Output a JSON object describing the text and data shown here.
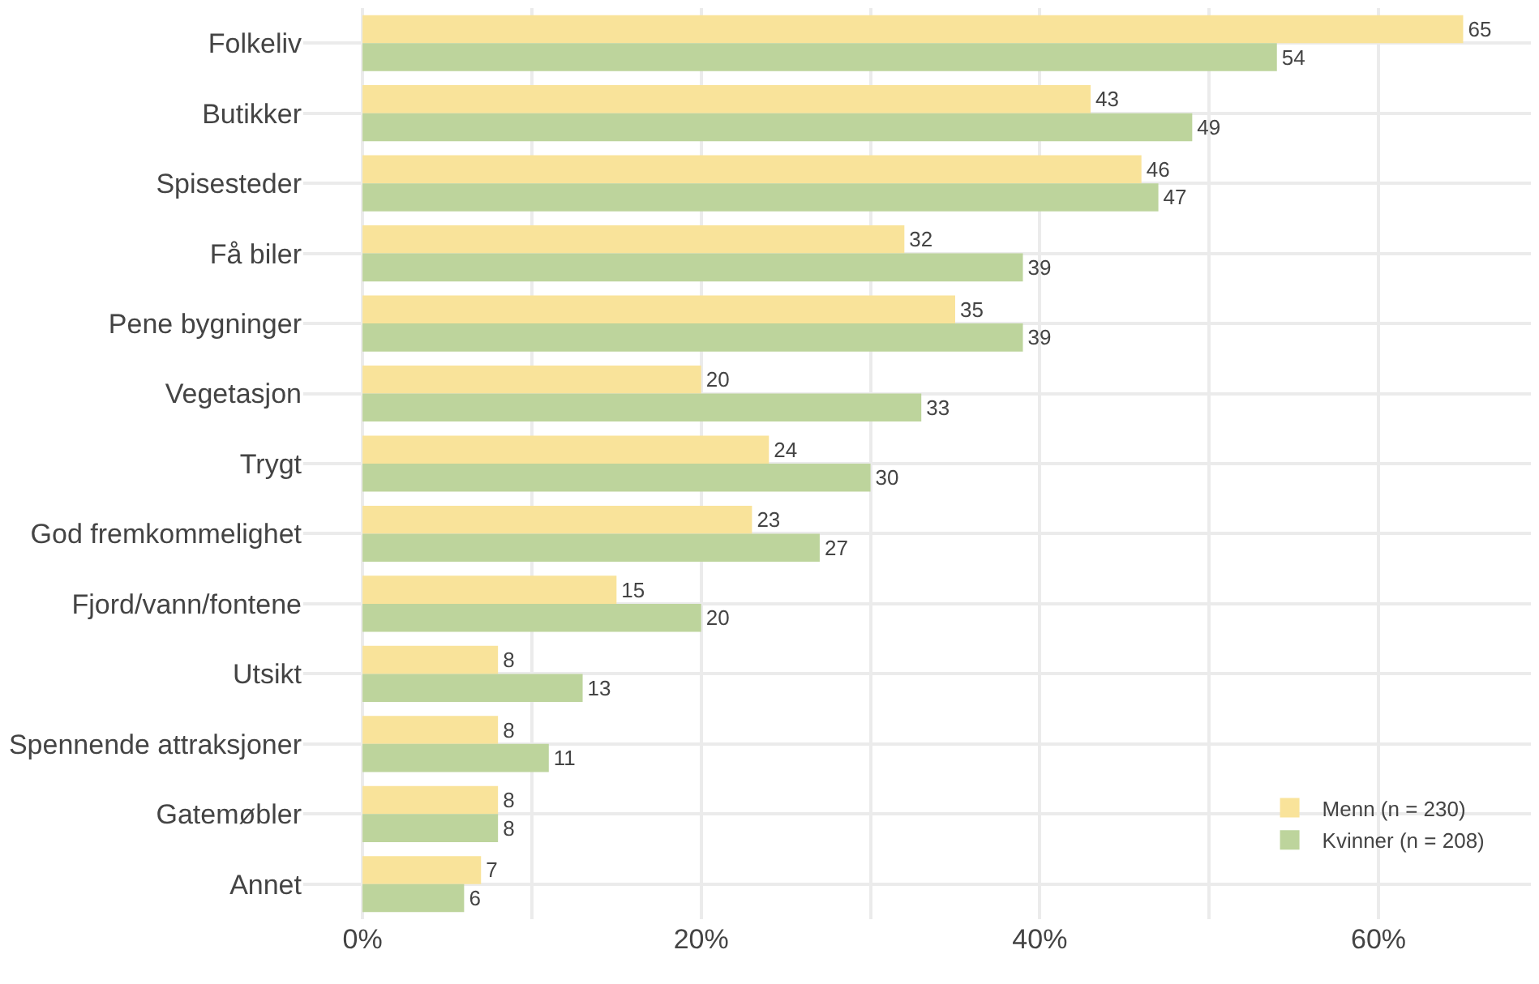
{
  "chart_data": {
    "type": "bar",
    "orientation": "horizontal",
    "categories": [
      "Folkeliv",
      "Butikker",
      "Spisesteder",
      "Få biler",
      "Pene bygninger",
      "Vegetasjon",
      "Trygt",
      "God fremkommelighet",
      "Fjord/vann/fontene",
      "Utsikt",
      "Spennende attraksjoner",
      "Gatemøbler",
      "Annet"
    ],
    "series": [
      {
        "name": "Menn (n = 230)",
        "color": "#f9e39a",
        "values": [
          65,
          43,
          46,
          32,
          35,
          20,
          24,
          23,
          15,
          8,
          8,
          8,
          7
        ]
      },
      {
        "name": "Kvinner (n = 208)",
        "color": "#bdd49c",
        "values": [
          54,
          49,
          47,
          39,
          39,
          33,
          30,
          27,
          20,
          13,
          11,
          8,
          6
        ]
      }
    ],
    "xlim": [
      -3.5,
      69
    ],
    "xticks": [
      {
        "value": 0,
        "label": "0%"
      },
      {
        "value": 10,
        "label": null
      },
      {
        "value": 20,
        "label": "20%"
      },
      {
        "value": 30,
        "label": null
      },
      {
        "value": 40,
        "label": "40%"
      },
      {
        "value": 50,
        "label": null
      },
      {
        "value": 60,
        "label": "60%"
      }
    ],
    "grid": true,
    "legend": "bottom right",
    "data_labels": true
  }
}
